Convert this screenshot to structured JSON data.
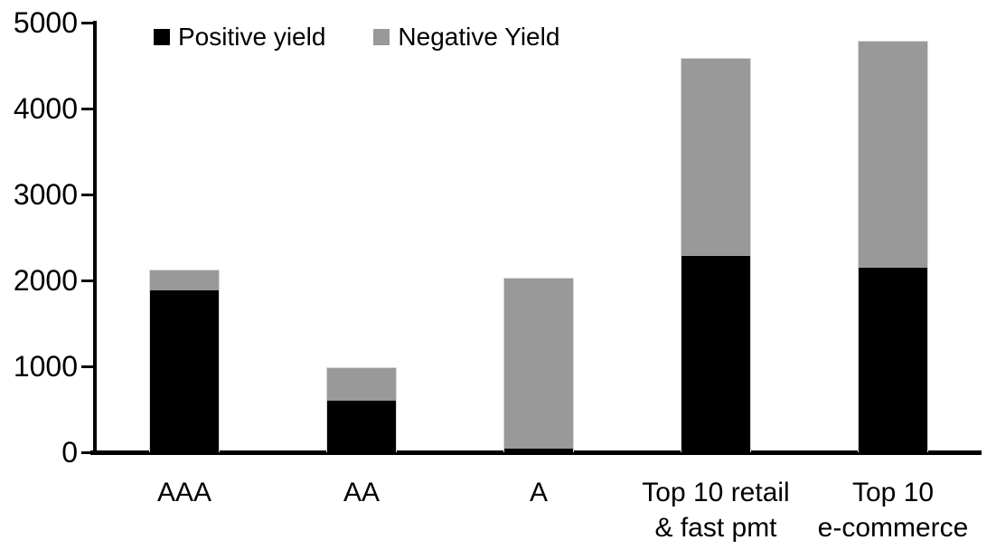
{
  "chart_data": {
    "type": "bar",
    "stacked": true,
    "title": "",
    "xlabel": "",
    "ylabel": "",
    "categories": [
      "AAA",
      "AA",
      "A",
      "Top 10 retail & fast pmt",
      "Top 10 e-commerce"
    ],
    "category_label_lines": [
      [
        "AAA"
      ],
      [
        "AA"
      ],
      [
        "A"
      ],
      [
        "Top 10 retail",
        "& fast pmt"
      ],
      [
        "Top 10",
        "e-commerce"
      ]
    ],
    "series": [
      {
        "name": "Positive yield",
        "color": "#000000",
        "values": [
          1890,
          610,
          40,
          2290,
          2150
        ]
      },
      {
        "name": "Negative Yield",
        "color": "#999999",
        "values": [
          240,
          380,
          1990,
          2300,
          2640
        ]
      }
    ],
    "stack_totals": [
      2130,
      990,
      2030,
      4590,
      4790
    ],
    "ylim": [
      0,
      5000
    ],
    "yticks": [
      0,
      1000,
      2000,
      3000,
      4000,
      5000
    ],
    "ytick_labels": [
      "0",
      "1000",
      "2000",
      "3000",
      "4000",
      "5000"
    ],
    "grid": false,
    "legend_position": "top-left-inside"
  },
  "legend": {
    "items": [
      {
        "label": "Positive yield",
        "color": "#000000"
      },
      {
        "label": "Negative Yield",
        "color": "#999999"
      }
    ]
  },
  "colors": {
    "positive_series": "#000000",
    "negative_series": "#999999",
    "axis": "#000000",
    "background": "#ffffff",
    "bar_outline": "#d9d9d9"
  }
}
